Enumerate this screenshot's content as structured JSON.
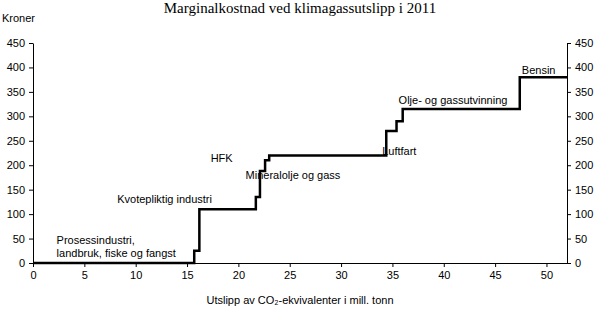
{
  "chart_data": {
    "type": "line",
    "title": "Marginalkostnad ved klimagassutslipp i 2011",
    "ylabel": "Kroner",
    "xlabel": "Utslipp av CO₂-ekvivalenter i mill. tonn",
    "x": [
      0,
      15.7,
      16.2,
      21.7,
      22.1,
      22.6,
      23.0,
      34.4,
      35.4,
      36.0,
      47.4,
      52
    ],
    "values": [
      0,
      25,
      110,
      135,
      188,
      210,
      220,
      270,
      290,
      315,
      380,
      380
    ],
    "color": "#000000",
    "line_style": "step",
    "xlim": [
      0,
      52
    ],
    "xticks": [
      0,
      5,
      10,
      15,
      20,
      25,
      30,
      35,
      40,
      45,
      50
    ],
    "ylim": [
      0,
      450
    ],
    "yticks": [
      0,
      50,
      100,
      150,
      200,
      250,
      300,
      350,
      400,
      450
    ],
    "grid": false,
    "annotations": [
      {
        "text": "Prosessindustri,\nlandbruk, fiske og fangst",
        "x": 2.3,
        "y": 39
      },
      {
        "text": "Kvotepliktig industri",
        "x": 8.2,
        "y": 123
      },
      {
        "text": "HFK",
        "x": 17.3,
        "y": 207
      },
      {
        "text": "Mineralolje og gass",
        "x": 20.7,
        "y": 172
      },
      {
        "text": "Luftfart",
        "x": 34.0,
        "y": 221
      },
      {
        "text": "Olje- og gassutvinning",
        "x": 35.6,
        "y": 325
      },
      {
        "text": "Bensin",
        "x": 47.6,
        "y": 387
      }
    ]
  }
}
